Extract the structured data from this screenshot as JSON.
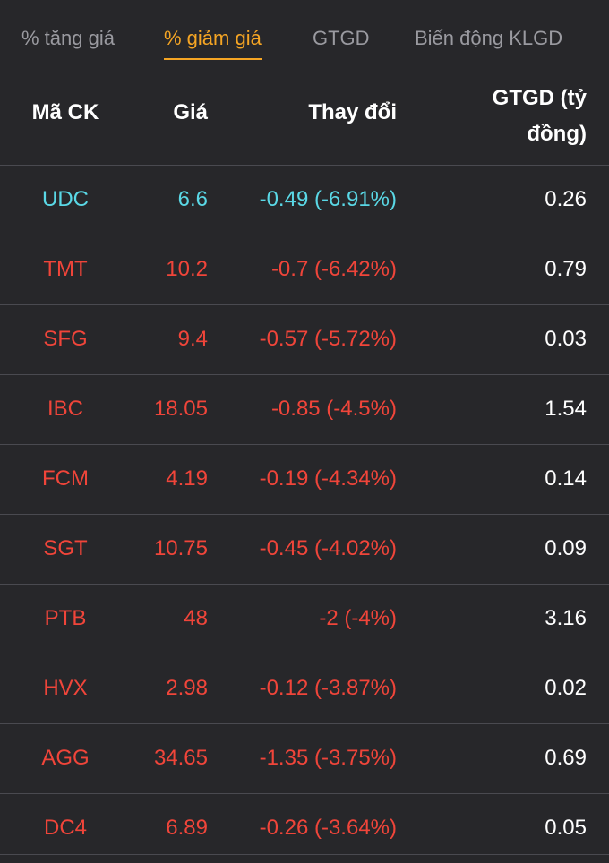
{
  "tabs": [
    {
      "label": "% tăng giá",
      "active": false
    },
    {
      "label": "% giảm giá",
      "active": true
    },
    {
      "label": "GTGD",
      "active": false
    },
    {
      "label": "Biến động KLGD",
      "active": false
    }
  ],
  "columns": {
    "code": "Mã CK",
    "price": "Giá",
    "change": "Thay đổi",
    "value_line1": "GTGD (tỷ",
    "value_line2": "đồng)"
  },
  "colors": {
    "accent": "#f5a524",
    "floor": "#5ad8e6",
    "down": "#f0453a",
    "text": "#ffffff",
    "muted": "#9a9aa0",
    "background": "#27272a"
  },
  "rows": [
    {
      "code": "UDC",
      "price": "6.6",
      "change": "-0.49 (-6.91%)",
      "value": "0.26",
      "status": "floor"
    },
    {
      "code": "TMT",
      "price": "10.2",
      "change": "-0.7 (-6.42%)",
      "value": "0.79",
      "status": "down"
    },
    {
      "code": "SFG",
      "price": "9.4",
      "change": "-0.57 (-5.72%)",
      "value": "0.03",
      "status": "down"
    },
    {
      "code": "IBC",
      "price": "18.05",
      "change": "-0.85 (-4.5%)",
      "value": "1.54",
      "status": "down"
    },
    {
      "code": "FCM",
      "price": "4.19",
      "change": "-0.19 (-4.34%)",
      "value": "0.14",
      "status": "down"
    },
    {
      "code": "SGT",
      "price": "10.75",
      "change": "-0.45 (-4.02%)",
      "value": "0.09",
      "status": "down"
    },
    {
      "code": "PTB",
      "price": "48",
      "change": "-2 (-4%)",
      "value": "3.16",
      "status": "down"
    },
    {
      "code": "HVX",
      "price": "2.98",
      "change": "-0.12 (-3.87%)",
      "value": "0.02",
      "status": "down"
    },
    {
      "code": "AGG",
      "price": "34.65",
      "change": "-1.35 (-3.75%)",
      "value": "0.69",
      "status": "down"
    },
    {
      "code": "DC4",
      "price": "6.89",
      "change": "-0.26 (-3.64%)",
      "value": "0.05",
      "status": "down"
    }
  ]
}
